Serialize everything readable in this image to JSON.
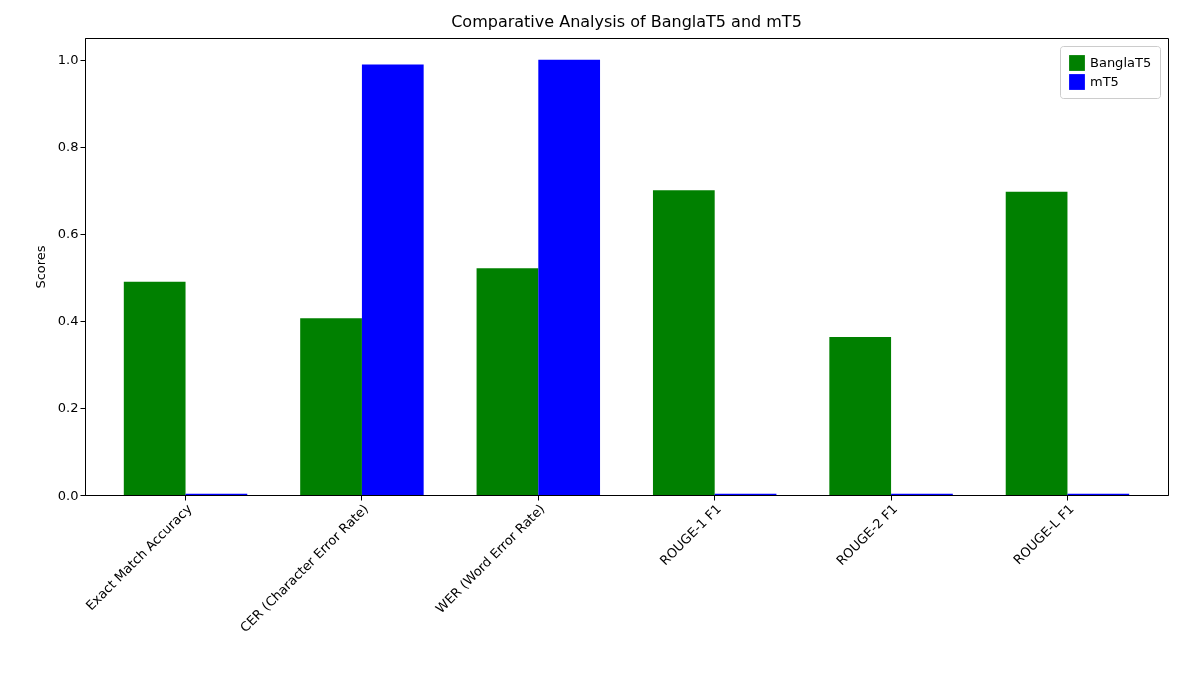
{
  "chart_data": {
    "type": "bar",
    "title": "Comparative Analysis of BanglaT5 and mT5",
    "ylabel": "Scores",
    "categories": [
      "Exact Match Accuracy",
      "CER (Character Error Rate)",
      "WER (Word Error Rate)",
      "ROUGE-1 F1",
      "ROUGE-2 F1",
      "ROUGE-L F1"
    ],
    "series": [
      {
        "name": "BanglaT5",
        "color": "#008000",
        "values": [
          0.49,
          0.406,
          0.521,
          0.7,
          0.363,
          0.697
        ]
      },
      {
        "name": "mT5",
        "color": "#0000ff",
        "values": [
          0.003,
          0.989,
          1.0,
          0.003,
          0.003,
          0.003
        ]
      }
    ],
    "ylim": [
      0,
      1.05
    ],
    "yticks": [
      {
        "value": 0,
        "label": "0.0"
      },
      0.2,
      0.4,
      0.6,
      0.8,
      {
        "value": 1,
        "label": "1.0"
      }
    ],
    "grid": false,
    "legend": "top right"
  }
}
